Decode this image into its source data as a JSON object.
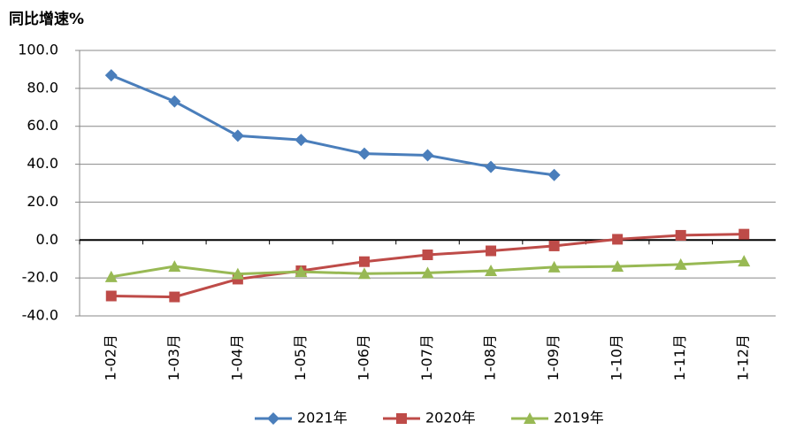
{
  "chart_data": {
    "type": "line",
    "title": "同比增速%",
    "categories": [
      "1-02月",
      "1-03月",
      "1-04月",
      "1-05月",
      "1-06月",
      "1-07月",
      "1-08月",
      "1-09月",
      "1-10月",
      "1-11月",
      "1-12月"
    ],
    "series": [
      {
        "name": "2021年",
        "color": "#4a7ebb",
        "marker": "diamond",
        "values": [
          86.9,
          73.1,
          55.0,
          52.8,
          45.6,
          44.7,
          38.6,
          34.3,
          null,
          null,
          null
        ]
      },
      {
        "name": "2020年",
        "color": "#be4b48",
        "marker": "square",
        "values": [
          -29.5,
          -30.0,
          -20.6,
          -16.2,
          -11.4,
          -7.8,
          -5.7,
          -3.1,
          0.4,
          2.5,
          3.1
        ]
      },
      {
        "name": "2019年",
        "color": "#98b954",
        "marker": "triangle",
        "values": [
          -19.4,
          -13.9,
          -17.9,
          -16.7,
          -17.7,
          -17.3,
          -16.2,
          -14.3,
          -13.9,
          -12.9,
          -11.1
        ]
      }
    ],
    "ylim": [
      -40,
      100
    ],
    "yticks": [
      {
        "value": -40,
        "label": "-40.0"
      },
      {
        "value": -20,
        "label": "-20.0"
      },
      {
        "value": 0,
        "label": "0.0"
      },
      {
        "value": 20,
        "label": "20.0"
      },
      {
        "value": 40,
        "label": "40.0"
      },
      {
        "value": 60,
        "label": "60.0"
      },
      {
        "value": 80,
        "label": "80.0"
      },
      {
        "value": 100,
        "label": "100.0"
      }
    ],
    "grid": true,
    "legend": "bottom"
  }
}
